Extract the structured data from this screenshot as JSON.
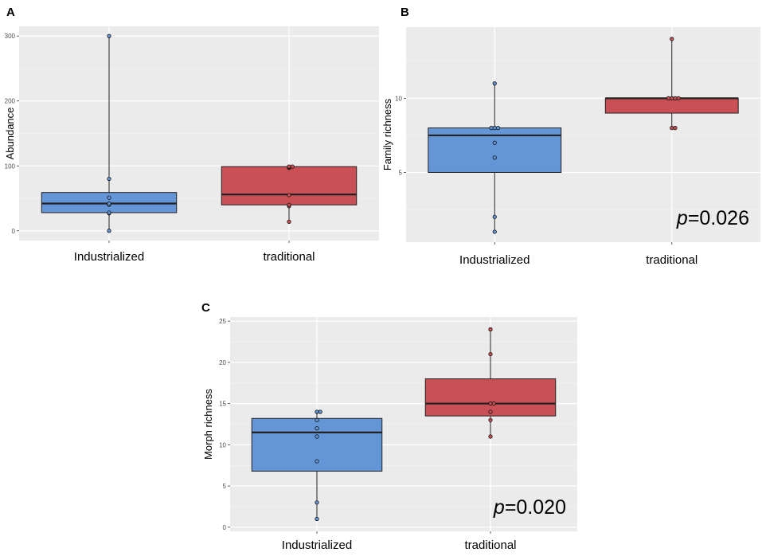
{
  "chart_data": [
    {
      "panel_label": "A",
      "type": "box",
      "ylabel": "Abundance",
      "categories": [
        "Industrialized",
        "traditional"
      ],
      "yticks": [
        0,
        100,
        200,
        300
      ],
      "ytick_labels": [
        "0",
        "100",
        "200",
        "300"
      ],
      "ylim": [
        -15,
        315
      ],
      "p_prefix": "",
      "p_value": "",
      "boxes": [
        {
          "name": "Industrialized",
          "color": "#6495d6",
          "q1": 28,
          "median": 42,
          "q3": 59,
          "whisker_low": 0,
          "whisker_high": 300,
          "points": [
            0,
            27,
            28,
            40,
            42,
            51,
            80,
            300
          ]
        },
        {
          "name": "traditional",
          "color": "#c95155",
          "q1": 40,
          "median": 56,
          "q3": 99,
          "whisker_low": 14,
          "whisker_high": 99,
          "points": [
            14,
            38,
            40,
            55,
            97,
            98,
            99,
            99
          ]
        }
      ]
    },
    {
      "panel_label": "B",
      "type": "box",
      "ylabel": "Family richness",
      "categories": [
        "Industrialized",
        "traditional"
      ],
      "yticks": [
        5,
        10
      ],
      "ytick_labels": [
        "5",
        "10"
      ],
      "ylim": [
        0.3,
        14.8
      ],
      "p_prefix": "p",
      "p_value": "=0.026",
      "boxes": [
        {
          "name": "Industrialized",
          "color": "#6495d6",
          "q1": 5,
          "median": 7.5,
          "q3": 8,
          "whisker_low": 1,
          "whisker_high": 11,
          "points": [
            1,
            2,
            6,
            7,
            8,
            8,
            8,
            11
          ]
        },
        {
          "name": "traditional",
          "color": "#c95155",
          "q1": 9,
          "median": 10,
          "q3": 10,
          "whisker_low": 8,
          "whisker_high": 14,
          "points": [
            8,
            8,
            10,
            10,
            10,
            10,
            14
          ]
        }
      ]
    },
    {
      "panel_label": "C",
      "type": "box",
      "ylabel": "Morph richness",
      "categories": [
        "Industrialized",
        "traditional"
      ],
      "yticks": [
        0,
        5,
        10,
        15,
        20,
        25
      ],
      "ytick_labels": [
        "0",
        "5",
        "10",
        "15",
        "20",
        "25"
      ],
      "ylim": [
        -0.5,
        25.5
      ],
      "p_prefix": "p",
      "p_value": "=0.020",
      "boxes": [
        {
          "name": "Industrialized",
          "color": "#6495d6",
          "q1": 6.8,
          "median": 11.5,
          "q3": 13.2,
          "whisker_low": 1,
          "whisker_high": 14,
          "points": [
            1,
            3,
            8,
            11,
            12,
            13,
            14,
            14
          ]
        },
        {
          "name": "traditional",
          "color": "#c95155",
          "q1": 13.5,
          "median": 15,
          "q3": 18,
          "whisker_low": 11,
          "whisker_high": 24,
          "points": [
            11,
            13,
            14,
            15,
            15,
            21,
            24
          ]
        }
      ]
    }
  ]
}
